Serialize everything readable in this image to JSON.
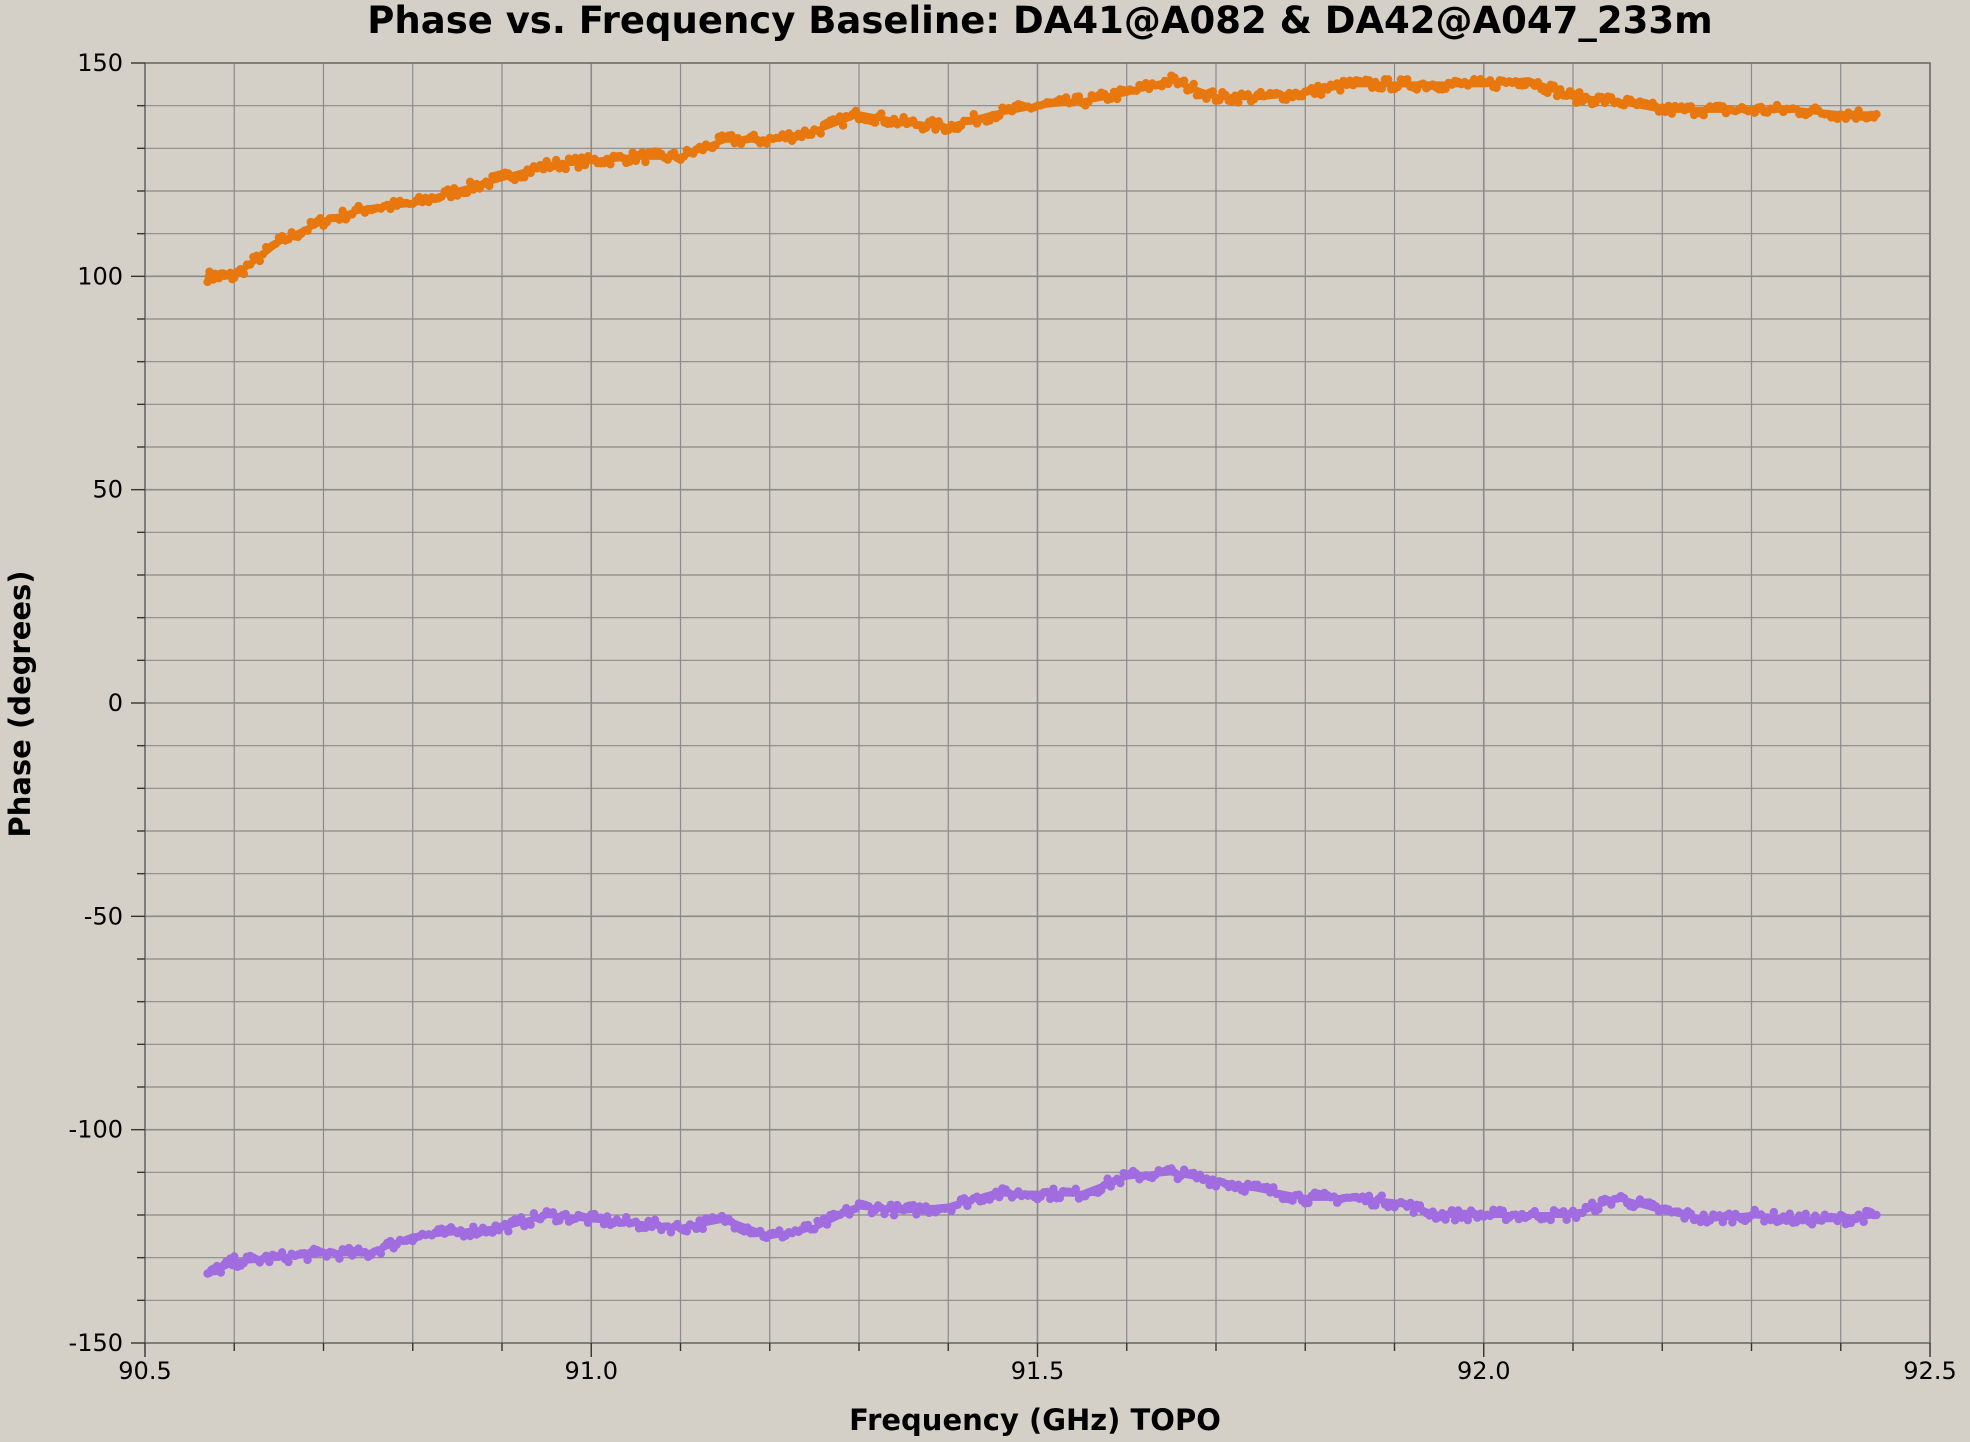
{
  "chart_data": {
    "type": "scatter",
    "title": "Phase vs. Frequency Baseline: DA41@A082 & DA42@A047_233m",
    "xlabel": "Frequency (GHz) TOPO",
    "ylabel": "Phase (degrees)",
    "xlim": [
      90.5,
      92.5
    ],
    "ylim": [
      -150,
      150
    ],
    "x_ticks": [
      "90.5",
      "91.0",
      "91.5",
      "92.0",
      "92.5"
    ],
    "y_ticks": [
      "150",
      "100",
      "50",
      "0",
      "-50",
      "-100",
      "-150"
    ],
    "grid": true,
    "legend": "none",
    "colors": {
      "background": "#d4d0c8",
      "grid": "#8a8a8a"
    },
    "series": [
      {
        "color": "#e8780e",
        "x": [
          90.57,
          90.6,
          90.65,
          90.7,
          90.75,
          90.8,
          90.85,
          90.9,
          90.95,
          91.0,
          91.05,
          91.1,
          91.15,
          91.2,
          91.25,
          91.3,
          91.35,
          91.4,
          91.45,
          91.5,
          91.55,
          91.6,
          91.65,
          91.7,
          91.75,
          91.8,
          91.85,
          91.9,
          91.95,
          92.0,
          92.05,
          92.1,
          92.15,
          92.2,
          92.25,
          92.3,
          92.35,
          92.4,
          92.44
        ],
        "y": [
          100,
          100,
          108,
          113,
          116,
          117,
          120,
          123,
          126,
          127,
          128,
          128,
          132,
          132,
          134,
          138,
          136,
          135,
          138,
          140,
          141,
          143,
          146,
          142,
          142,
          143,
          145,
          145,
          145,
          145,
          146,
          142,
          141,
          139,
          139,
          139,
          139,
          138,
          138
        ]
      },
      {
        "color": "#a06ce0",
        "x": [
          90.57,
          90.6,
          90.65,
          90.7,
          90.75,
          90.8,
          90.85,
          90.9,
          90.95,
          91.0,
          91.05,
          91.1,
          91.15,
          91.2,
          91.25,
          91.3,
          91.35,
          91.4,
          91.45,
          91.5,
          91.55,
          91.6,
          91.65,
          91.7,
          91.75,
          91.8,
          91.85,
          91.9,
          91.95,
          92.0,
          92.05,
          92.1,
          92.15,
          92.2,
          92.25,
          92.3,
          92.35,
          92.4,
          92.44
        ],
        "y": [
          -134,
          -131,
          -130,
          -129,
          -129,
          -125,
          -124,
          -123,
          -120,
          -121,
          -122,
          -123,
          -121,
          -125,
          -123,
          -118,
          -119,
          -118,
          -115,
          -115,
          -115,
          -111,
          -110,
          -112,
          -114,
          -116,
          -116,
          -117,
          -120,
          -120,
          -120,
          -120,
          -116,
          -119,
          -121,
          -120,
          -121,
          -121,
          -120
        ]
      }
    ]
  }
}
